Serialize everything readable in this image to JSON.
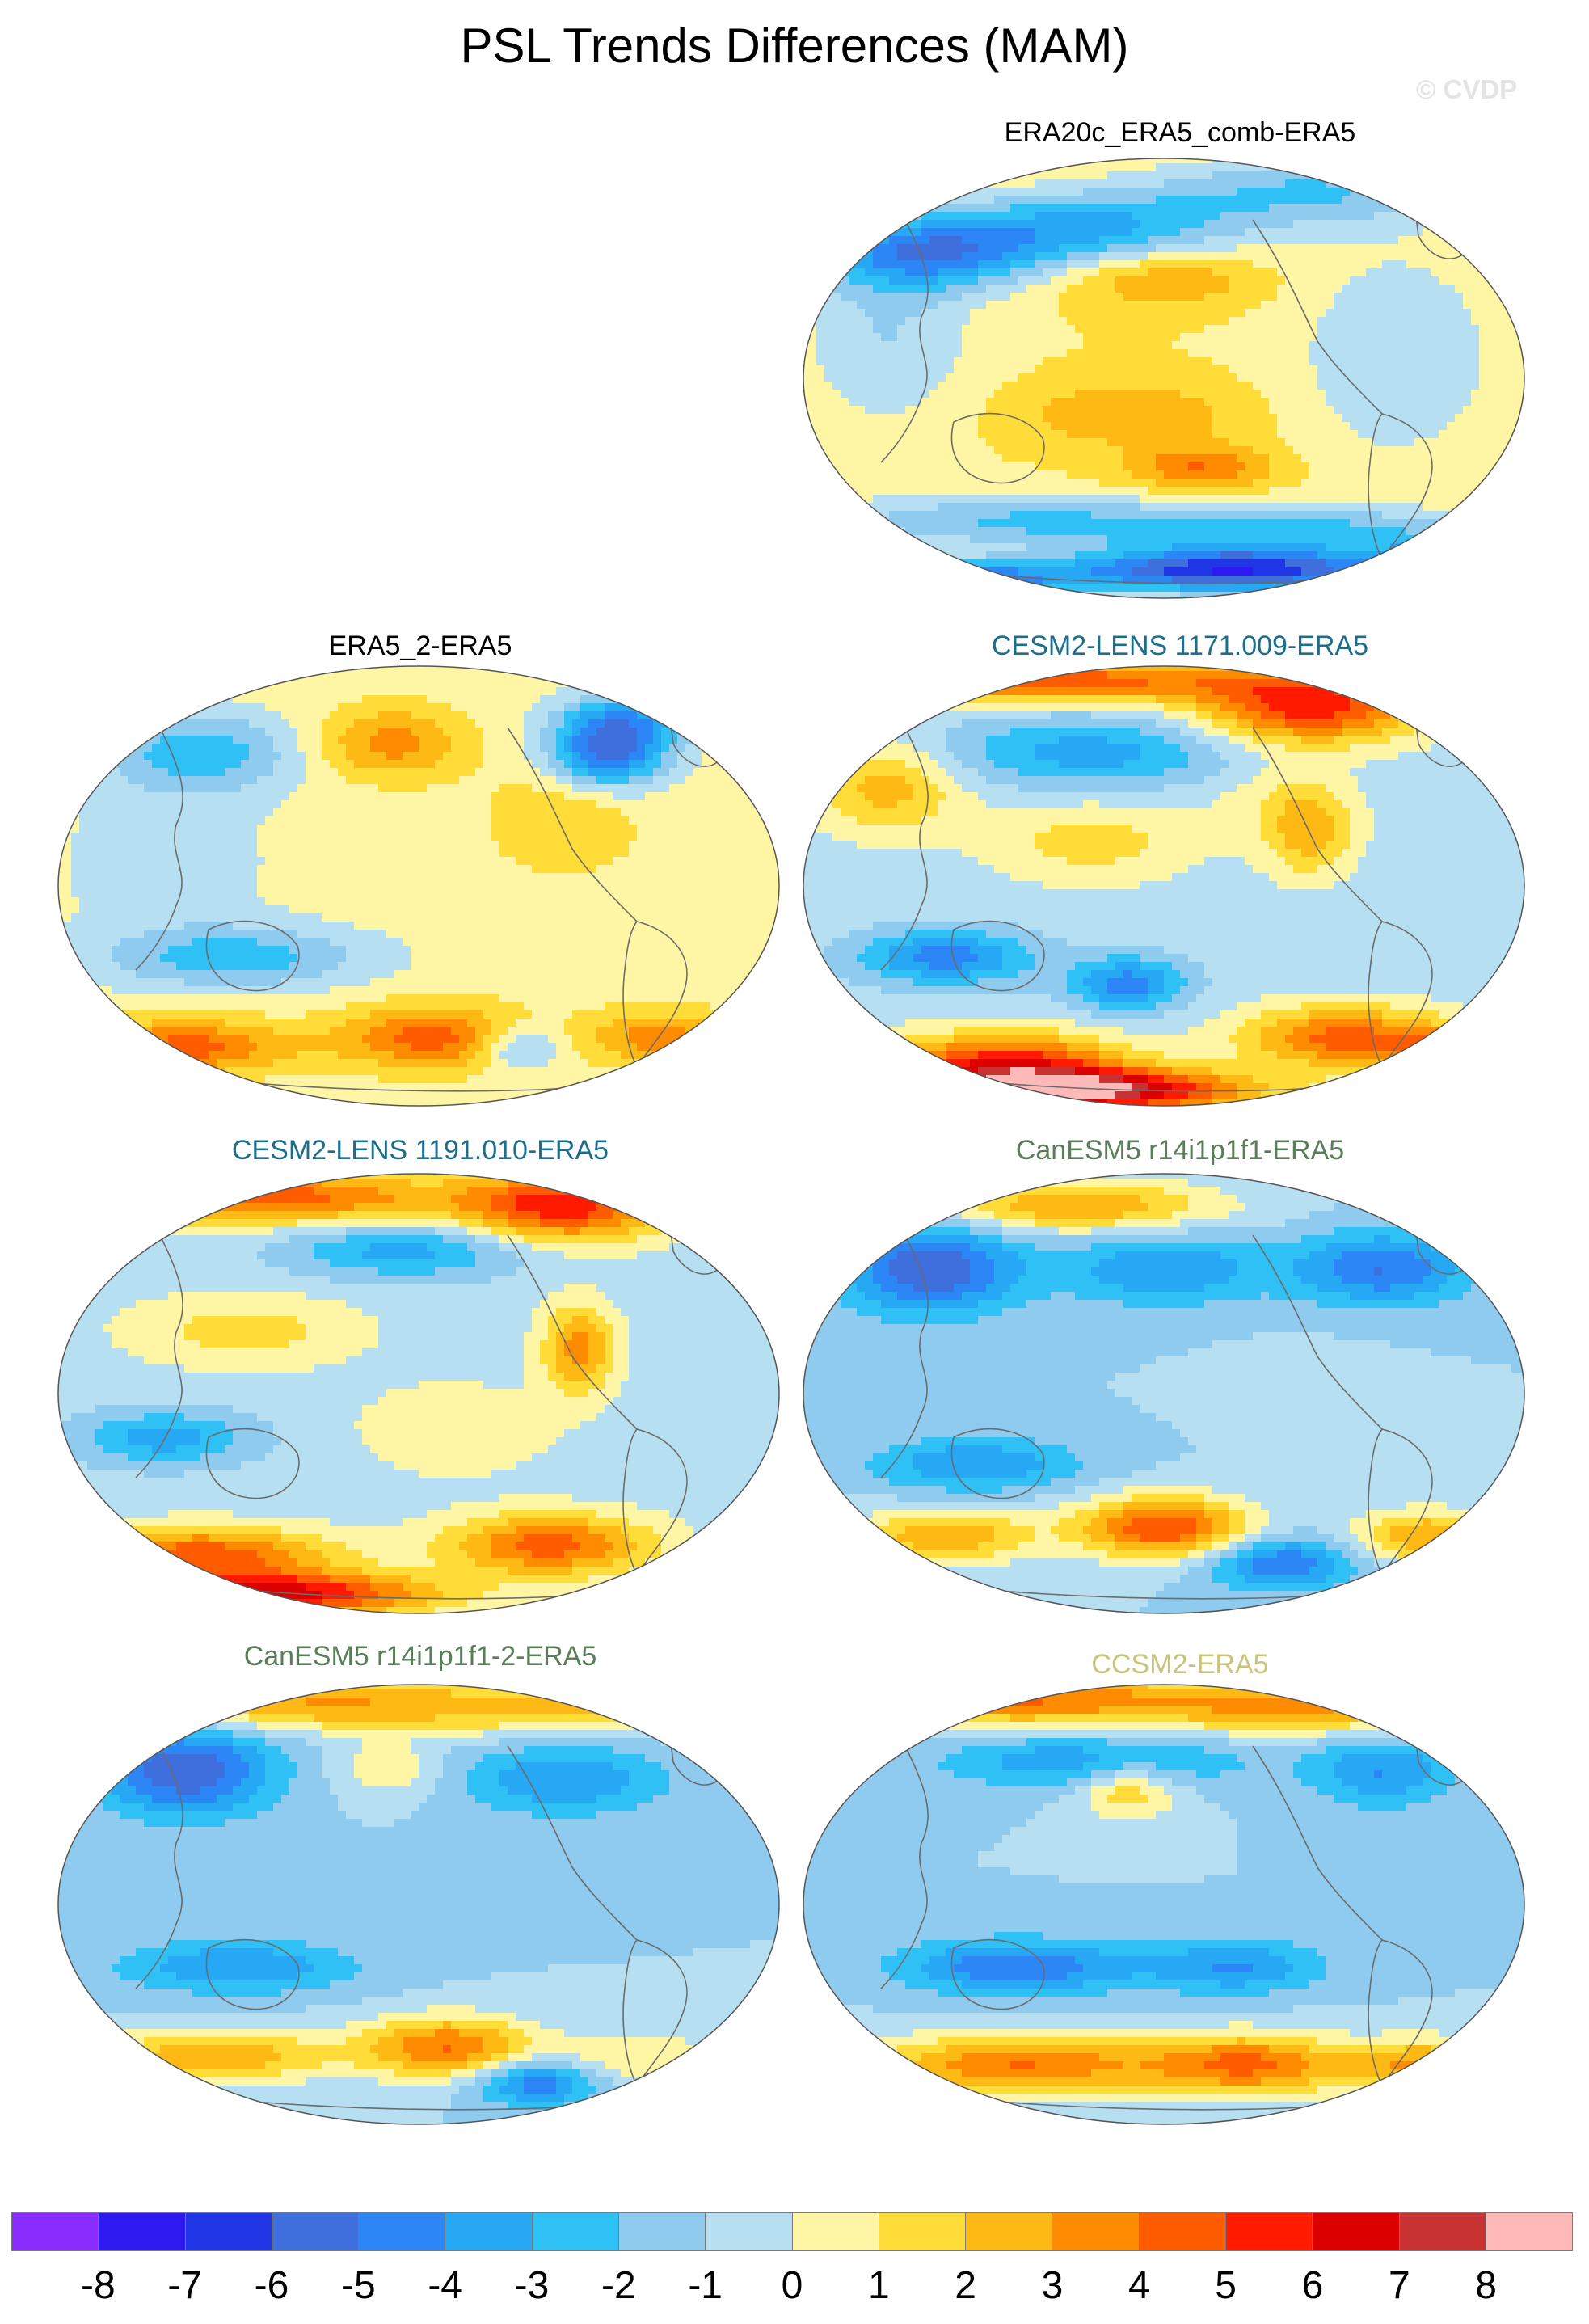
{
  "title": "PSL Trends Differences (MAM)",
  "watermark": "© CVDP",
  "panels": [
    {
      "id": "era20c",
      "title": "ERA20c_ERA5_comb-ERA5",
      "title_color": "#000000",
      "pattern": {
        "base": 1,
        "blobs": [
          [
            0.18,
            0.22,
            0.16,
            0.08,
            -5
          ],
          [
            0.4,
            0.16,
            0.2,
            0.08,
            -4
          ],
          [
            0.7,
            0.08,
            0.22,
            0.08,
            -3
          ],
          [
            0.12,
            0.4,
            0.12,
            0.22,
            -2
          ],
          [
            0.5,
            0.28,
            0.13,
            0.06,
            2
          ],
          [
            0.82,
            0.45,
            0.14,
            0.24,
            -2
          ],
          [
            0.45,
            0.58,
            0.15,
            0.07,
            2
          ],
          [
            0.55,
            0.7,
            0.1,
            0.05,
            3
          ],
          [
            0.3,
            0.82,
            0.28,
            0.06,
            -3
          ],
          [
            0.7,
            0.84,
            0.26,
            0.05,
            -3
          ],
          [
            0.6,
            0.93,
            0.22,
            0.05,
            -8
          ],
          [
            0.2,
            0.95,
            0.18,
            0.04,
            -6
          ],
          [
            0.9,
            0.92,
            0.1,
            0.05,
            -6
          ]
        ]
      }
    },
    {
      "id": "era5_2",
      "title": "ERA5_2-ERA5",
      "title_color": "#000000",
      "pattern": {
        "base": 0.5,
        "blobs": [
          [
            0.2,
            0.2,
            0.14,
            0.09,
            -3
          ],
          [
            0.15,
            0.45,
            0.16,
            0.2,
            -1
          ],
          [
            0.46,
            0.18,
            0.1,
            0.08,
            3
          ],
          [
            0.76,
            0.2,
            0.08,
            0.08,
            -6
          ],
          [
            0.8,
            0.12,
            0.1,
            0.06,
            -3
          ],
          [
            0.25,
            0.66,
            0.18,
            0.07,
            -3
          ],
          [
            0.18,
            0.86,
            0.14,
            0.06,
            4
          ],
          [
            0.52,
            0.84,
            0.13,
            0.07,
            4
          ],
          [
            0.64,
            0.86,
            0.06,
            0.05,
            -3
          ],
          [
            0.83,
            0.84,
            0.1,
            0.06,
            3
          ],
          [
            0.7,
            0.35,
            0.1,
            0.12,
            1.5
          ]
        ]
      }
    },
    {
      "id": "cesm1171",
      "title": "CESM2-LENS 1171.009-ERA5",
      "title_color": "#1b6e8c",
      "pattern": {
        "base": -0.5,
        "blobs": [
          [
            0.35,
            0.04,
            0.3,
            0.05,
            5
          ],
          [
            0.7,
            0.1,
            0.15,
            0.08,
            6
          ],
          [
            0.4,
            0.2,
            0.2,
            0.08,
            -3
          ],
          [
            0.12,
            0.28,
            0.1,
            0.1,
            3
          ],
          [
            0.4,
            0.4,
            0.14,
            0.09,
            2
          ],
          [
            0.65,
            0.3,
            0.1,
            0.1,
            1
          ],
          [
            0.2,
            0.66,
            0.12,
            0.06,
            -4
          ],
          [
            0.45,
            0.72,
            0.08,
            0.06,
            -4
          ],
          [
            0.28,
            0.9,
            0.16,
            0.07,
            6
          ],
          [
            0.4,
            0.96,
            0.22,
            0.05,
            8
          ],
          [
            0.75,
            0.84,
            0.14,
            0.07,
            5
          ],
          [
            0.92,
            0.88,
            0.08,
            0.05,
            7
          ],
          [
            0.7,
            0.38,
            0.06,
            0.1,
            3
          ]
        ]
      }
    },
    {
      "id": "cesm1191",
      "title": "CESM2-LENS 1191.010-ERA5",
      "title_color": "#1b6e8c",
      "pattern": {
        "base": -0.5,
        "blobs": [
          [
            0.3,
            0.06,
            0.25,
            0.06,
            5
          ],
          [
            0.7,
            0.08,
            0.14,
            0.08,
            6
          ],
          [
            0.48,
            0.18,
            0.16,
            0.06,
            -3
          ],
          [
            0.26,
            0.36,
            0.16,
            0.08,
            2
          ],
          [
            0.15,
            0.6,
            0.12,
            0.06,
            -3
          ],
          [
            0.55,
            0.58,
            0.13,
            0.1,
            1.5
          ],
          [
            0.2,
            0.86,
            0.18,
            0.06,
            5
          ],
          [
            0.68,
            0.84,
            0.14,
            0.07,
            5
          ],
          [
            0.3,
            0.95,
            0.22,
            0.05,
            7
          ],
          [
            0.72,
            0.4,
            0.05,
            0.1,
            4
          ]
        ]
      }
    },
    {
      "id": "canesm",
      "title": "CanESM5 r14i1p1f1-ERA5",
      "title_color": "#5a7d5a",
      "pattern": {
        "base": -1,
        "blobs": [
          [
            0.18,
            0.22,
            0.12,
            0.1,
            -5
          ],
          [
            0.38,
            0.08,
            0.2,
            0.06,
            4
          ],
          [
            0.5,
            0.22,
            0.14,
            0.08,
            -3
          ],
          [
            0.8,
            0.22,
            0.12,
            0.08,
            -4
          ],
          [
            0.24,
            0.66,
            0.14,
            0.06,
            -3
          ],
          [
            0.2,
            0.82,
            0.12,
            0.06,
            4
          ],
          [
            0.5,
            0.8,
            0.12,
            0.07,
            6
          ],
          [
            0.66,
            0.88,
            0.1,
            0.06,
            -4
          ],
          [
            0.86,
            0.82,
            0.1,
            0.06,
            4
          ],
          [
            0.7,
            0.5,
            0.1,
            0.1,
            0.5
          ]
        ]
      }
    },
    {
      "id": "canesm2",
      "title": "CanESM5 r14i1p1f1-2-ERA5",
      "title_color": "#5a7d5a",
      "pattern": {
        "base": -1,
        "blobs": [
          [
            0.18,
            0.2,
            0.12,
            0.1,
            -5
          ],
          [
            0.35,
            0.05,
            0.24,
            0.06,
            4
          ],
          [
            0.7,
            0.06,
            0.2,
            0.06,
            3
          ],
          [
            0.46,
            0.2,
            0.07,
            0.06,
            2
          ],
          [
            0.7,
            0.22,
            0.14,
            0.08,
            -3
          ],
          [
            0.25,
            0.64,
            0.16,
            0.06,
            -3
          ],
          [
            0.22,
            0.84,
            0.16,
            0.06,
            4
          ],
          [
            0.54,
            0.82,
            0.12,
            0.07,
            5
          ],
          [
            0.66,
            0.9,
            0.08,
            0.05,
            -4
          ],
          [
            0.8,
            0.84,
            0.1,
            0.06,
            2
          ]
        ]
      }
    },
    {
      "id": "ccsm2",
      "title": "CCSM2-ERA5",
      "title_color": "#c9c47a",
      "pattern": {
        "base": -1,
        "blobs": [
          [
            0.3,
            0.04,
            0.26,
            0.06,
            5
          ],
          [
            0.7,
            0.06,
            0.2,
            0.06,
            4
          ],
          [
            0.4,
            0.18,
            0.2,
            0.06,
            -3
          ],
          [
            0.8,
            0.2,
            0.1,
            0.08,
            -3
          ],
          [
            0.45,
            0.24,
            0.07,
            0.07,
            3
          ],
          [
            0.3,
            0.64,
            0.16,
            0.06,
            -4
          ],
          [
            0.6,
            0.64,
            0.12,
            0.06,
            -3
          ],
          [
            0.3,
            0.86,
            0.2,
            0.07,
            5
          ],
          [
            0.62,
            0.86,
            0.14,
            0.07,
            5
          ],
          [
            0.86,
            0.86,
            0.1,
            0.06,
            4
          ]
        ]
      }
    }
  ],
  "colorbar": {
    "colors": [
      "#8b2cff",
      "#2e1af0",
      "#2035e6",
      "#3f6fdc",
      "#2c86f5",
      "#26a8f5",
      "#2fc0f5",
      "#8ecbee",
      "#b7dff2",
      "#fff6a5",
      "#ffdc37",
      "#ffb914",
      "#ff8b00",
      "#ff5c00",
      "#ff1a00",
      "#dc0000",
      "#c83232",
      "#ffb9b9"
    ],
    "levels": [
      "-8",
      "-7",
      "-6",
      "-5",
      "-4",
      "-3",
      "-2",
      "-1",
      "0",
      "1",
      "2",
      "3",
      "4",
      "5",
      "6",
      "7",
      "8"
    ]
  }
}
